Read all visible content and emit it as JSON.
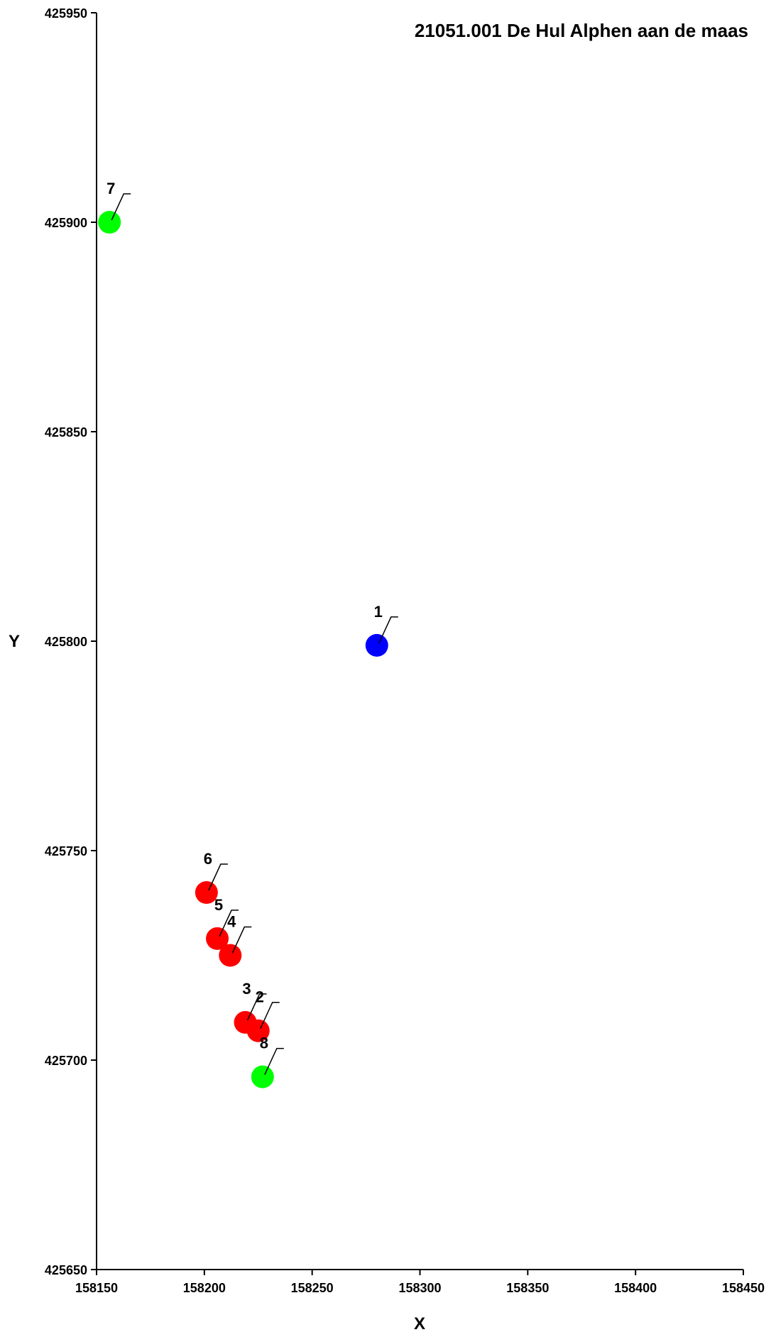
{
  "chart_data": {
    "type": "scatter",
    "title": "21051.001 De Hul Alphen aan de maas",
    "xlabel": "X",
    "ylabel": "Y",
    "xlim": [
      158150,
      158450
    ],
    "ylim": [
      425650,
      425950
    ],
    "xticks": [
      158150,
      158200,
      158250,
      158300,
      158350,
      158400,
      158450
    ],
    "yticks": [
      425650,
      425700,
      425750,
      425800,
      425850,
      425900,
      425950
    ],
    "grid": false,
    "points": [
      {
        "label": "1",
        "x": 158280,
        "y": 425799,
        "color": "#0000ff"
      },
      {
        "label": "2",
        "x": 158225,
        "y": 425707,
        "color": "#ff0000"
      },
      {
        "label": "3",
        "x": 158219,
        "y": 425709,
        "color": "#ff0000"
      },
      {
        "label": "4",
        "x": 158212,
        "y": 425725,
        "color": "#ff0000"
      },
      {
        "label": "5",
        "x": 158206,
        "y": 425729,
        "color": "#ff0000"
      },
      {
        "label": "6",
        "x": 158201,
        "y": 425740,
        "color": "#ff0000"
      },
      {
        "label": "7",
        "x": 158156,
        "y": 425900,
        "color": "#00ff00"
      },
      {
        "label": "8",
        "x": 158227,
        "y": 425696,
        "color": "#00ff00"
      }
    ]
  }
}
